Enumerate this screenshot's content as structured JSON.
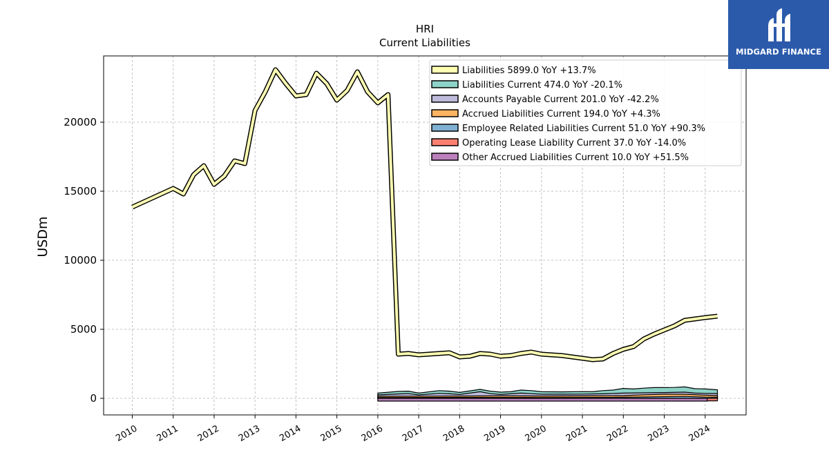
{
  "chart_data": {
    "type": "area",
    "title": "HRI",
    "subtitle": "Current  Liabilities",
    "ylabel": "USDm",
    "xlabel": "",
    "xlim": [
      2009.3,
      2025.0
    ],
    "ylim": [
      -1200,
      24800
    ],
    "yticks": [
      0,
      5000,
      10000,
      15000,
      20000
    ],
    "ytick_labels": [
      "0",
      "5000",
      "10000",
      "15000",
      "20000"
    ],
    "xticks": [
      2010,
      2011,
      2012,
      2013,
      2014,
      2015,
      2016,
      2017,
      2018,
      2019,
      2020,
      2021,
      2022,
      2023,
      2024
    ],
    "xtick_labels": [
      "2010",
      "2011",
      "2012",
      "2013",
      "2014",
      "2015",
      "2016",
      "2017",
      "2018",
      "2019",
      "2020",
      "2021",
      "2022",
      "2023",
      "2024"
    ],
    "grid": true,
    "legend_position": "top-right",
    "legend": [
      {
        "label": "Liabilities  5899.0 YoY +13.7%",
        "color": "#ffffb3"
      },
      {
        "label": "Liabilities Current  474.0 YoY -20.1%",
        "color": "#8dd3c7"
      },
      {
        "label": "Accounts Payable Current  201.0 YoY -42.2%",
        "color": "#bebada"
      },
      {
        "label": "Accrued Liabilities Current  194.0 YoY +4.3%",
        "color": "#fdb462"
      },
      {
        "label": "Employee Related Liabilities Current  51.0 YoY +90.3%",
        "color": "#80b1d3"
      },
      {
        "label": "Operating Lease Liability Current  37.0 YoY -14.0%",
        "color": "#fb8072"
      },
      {
        "label": "Other Accrued Liabilities Current  10.0 YoY +51.5%",
        "color": "#bc80bd"
      }
    ],
    "series": [
      {
        "name": "Liabilities",
        "color": "#ffffb3",
        "points": [
          [
            2010.0,
            13850
          ],
          [
            2011.0,
            15200
          ],
          [
            2011.25,
            14800
          ],
          [
            2011.5,
            16200
          ],
          [
            2011.75,
            16850
          ],
          [
            2012.0,
            15500
          ],
          [
            2012.25,
            16100
          ],
          [
            2012.5,
            17200
          ],
          [
            2012.75,
            17000
          ],
          [
            2013.0,
            20850
          ],
          [
            2013.25,
            22200
          ],
          [
            2013.5,
            23800
          ],
          [
            2013.75,
            22800
          ],
          [
            2014.0,
            21900
          ],
          [
            2014.25,
            22000
          ],
          [
            2014.5,
            23550
          ],
          [
            2014.75,
            22800
          ],
          [
            2015.0,
            21600
          ],
          [
            2015.25,
            22300
          ],
          [
            2015.5,
            23650
          ],
          [
            2015.75,
            22200
          ],
          [
            2016.0,
            21400
          ],
          [
            2016.25,
            22000
          ],
          [
            2016.5,
            3200
          ],
          [
            2016.75,
            3250
          ],
          [
            2017.0,
            3150
          ],
          [
            2017.25,
            3200
          ],
          [
            2017.5,
            3250
          ],
          [
            2017.75,
            3300
          ],
          [
            2018.0,
            3000
          ],
          [
            2018.25,
            3050
          ],
          [
            2018.5,
            3250
          ],
          [
            2018.75,
            3200
          ],
          [
            2019.0,
            3050
          ],
          [
            2019.25,
            3100
          ],
          [
            2019.5,
            3250
          ],
          [
            2019.75,
            3350
          ],
          [
            2020.0,
            3200
          ],
          [
            2020.25,
            3150
          ],
          [
            2020.5,
            3100
          ],
          [
            2020.75,
            3000
          ],
          [
            2021.0,
            2900
          ],
          [
            2021.25,
            2800
          ],
          [
            2021.5,
            2850
          ],
          [
            2021.75,
            3250
          ],
          [
            2022.0,
            3550
          ],
          [
            2022.25,
            3750
          ],
          [
            2022.5,
            4300
          ],
          [
            2022.75,
            4650
          ],
          [
            2023.0,
            4950
          ],
          [
            2023.25,
            5250
          ],
          [
            2023.5,
            5650
          ],
          [
            2023.75,
            5750
          ],
          [
            2024.0,
            5850
          ],
          [
            2024.3,
            5950
          ]
        ]
      },
      {
        "name": "Liabilities Current",
        "color": "#8dd3c7",
        "points": [
          [
            2016.0,
            380
          ],
          [
            2016.5,
            500
          ],
          [
            2016.75,
            520
          ],
          [
            2017.0,
            380
          ],
          [
            2017.5,
            560
          ],
          [
            2017.75,
            520
          ],
          [
            2018.0,
            430
          ],
          [
            2018.5,
            650
          ],
          [
            2018.75,
            520
          ],
          [
            2019.0,
            450
          ],
          [
            2019.25,
            480
          ],
          [
            2019.5,
            600
          ],
          [
            2019.75,
            560
          ],
          [
            2020.0,
            480
          ],
          [
            2020.5,
            470
          ],
          [
            2021.0,
            490
          ],
          [
            2021.25,
            480
          ],
          [
            2021.5,
            560
          ],
          [
            2021.75,
            600
          ],
          [
            2022.0,
            720
          ],
          [
            2022.25,
            680
          ],
          [
            2022.5,
            740
          ],
          [
            2022.75,
            780
          ],
          [
            2023.0,
            780
          ],
          [
            2023.25,
            790
          ],
          [
            2023.5,
            830
          ],
          [
            2023.75,
            700
          ],
          [
            2024.0,
            680
          ],
          [
            2024.3,
            620
          ]
        ]
      },
      {
        "name": "Accounts Payable Current",
        "color": "#bebada",
        "points": [
          [
            2016.0,
            250
          ],
          [
            2016.5,
            320
          ],
          [
            2016.75,
            340
          ],
          [
            2017.0,
            250
          ],
          [
            2017.5,
            360
          ],
          [
            2017.75,
            330
          ],
          [
            2018.0,
            280
          ],
          [
            2018.5,
            480
          ],
          [
            2018.75,
            340
          ],
          [
            2019.0,
            280
          ],
          [
            2019.5,
            380
          ],
          [
            2020.0,
            300
          ],
          [
            2020.5,
            300
          ],
          [
            2021.0,
            310
          ],
          [
            2021.5,
            330
          ],
          [
            2022.0,
            380
          ],
          [
            2022.5,
            400
          ],
          [
            2023.0,
            420
          ],
          [
            2023.5,
            450
          ],
          [
            2023.75,
            380
          ],
          [
            2024.0,
            360
          ],
          [
            2024.3,
            350
          ]
        ]
      },
      {
        "name": "Accrued Liabilities Current",
        "color": "#fdb462",
        "points": [
          [
            2016.0,
            150
          ],
          [
            2017.0,
            160
          ],
          [
            2018.0,
            170
          ],
          [
            2019.0,
            180
          ],
          [
            2020.0,
            170
          ],
          [
            2021.0,
            180
          ],
          [
            2022.0,
            200
          ],
          [
            2022.5,
            260
          ],
          [
            2023.0,
            300
          ],
          [
            2023.5,
            300
          ],
          [
            2024.0,
            230
          ],
          [
            2024.3,
            200
          ]
        ]
      },
      {
        "name": "Employee Related Liabilities Current",
        "color": "#80b1d3",
        "points": [
          [
            2016.0,
            60
          ],
          [
            2018.0,
            70
          ],
          [
            2020.0,
            60
          ],
          [
            2022.0,
            80
          ],
          [
            2023.5,
            140
          ],
          [
            2024.0,
            90
          ],
          [
            2024.3,
            80
          ]
        ]
      },
      {
        "name": "Operating Lease Liability Current",
        "color": "#fb8072",
        "points": [
          [
            2016.0,
            0
          ],
          [
            2023.999,
            0
          ],
          [
            2024.05,
            -180
          ],
          [
            2024.3,
            -180
          ]
        ]
      },
      {
        "name": "Other Accrued Liabilities Current",
        "color": "#bc80bd",
        "points": [
          [
            2016.0,
            -200
          ],
          [
            2024.05,
            -200
          ]
        ]
      }
    ]
  },
  "logo": {
    "text": "MIDGARD FINANCE"
  }
}
